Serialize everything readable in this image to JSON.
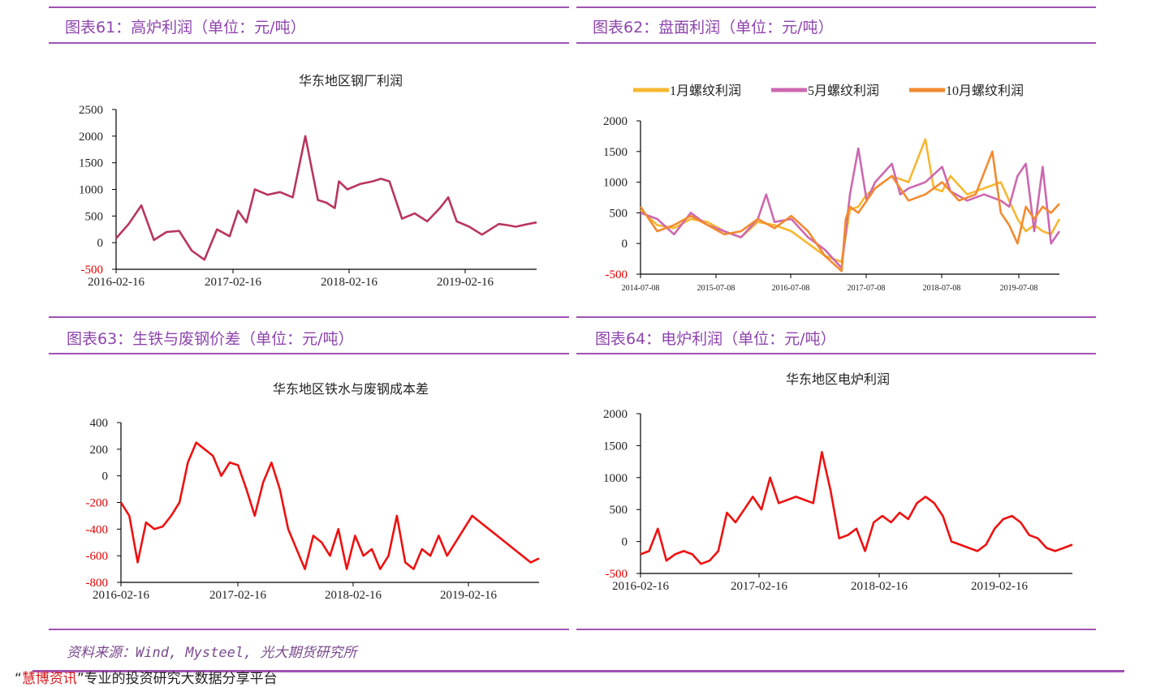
{
  "panels": {
    "p61": {
      "title": "图表61：高炉利润（单位：元/吨）"
    },
    "p62": {
      "title": "图表62：盘面利润（单位：元/吨）"
    },
    "p63": {
      "title": "图表63：生铁与废钢价差（单位：元/吨）"
    },
    "p64": {
      "title": "图表64：电炉利润（单位：元/吨）"
    }
  },
  "source": "资料来源：Wind, Mysteel, 光大期货研究所",
  "footer": {
    "quote_open": "“",
    "highlight": "慧博资讯",
    "rest": "”专业的投资研究大数据分享平台"
  },
  "colors": {
    "title": "#8e44ad",
    "rule": "#a052b4",
    "neg_tick": "#e00000"
  },
  "chart_data": [
    {
      "id": "c61",
      "type": "line",
      "title": "华东地区钢厂利润",
      "x_ticks": [
        "2016-02-16",
        "2017-02-16",
        "2018-02-16",
        "2019-02-16"
      ],
      "y_ticks": [
        "2500",
        "2000",
        "1500",
        "1000",
        "500",
        "0",
        "-500"
      ],
      "ylim": [
        -500,
        2500
      ],
      "series": [
        {
          "name": "华东地区钢厂利润",
          "color": "#b8365d",
          "t": [
            0,
            0.03,
            0.06,
            0.09,
            0.12,
            0.15,
            0.18,
            0.21,
            0.24,
            0.27,
            0.29,
            0.31,
            0.33,
            0.36,
            0.39,
            0.42,
            0.45,
            0.48,
            0.5,
            0.52,
            0.53,
            0.55,
            0.58,
            0.61,
            0.63,
            0.65,
            0.68,
            0.71,
            0.74,
            0.77,
            0.79,
            0.81,
            0.84,
            0.87,
            0.89,
            0.91,
            0.93,
            0.95,
            0.98,
            1.0
          ],
          "values": [
            80,
            350,
            700,
            50,
            200,
            220,
            -150,
            -320,
            250,
            120,
            600,
            380,
            1000,
            900,
            950,
            850,
            2000,
            800,
            750,
            650,
            1150,
            1000,
            1100,
            1150,
            1200,
            1150,
            450,
            550,
            400,
            650,
            850,
            400,
            300,
            150,
            250,
            350,
            330,
            300,
            350,
            380
          ]
        }
      ]
    },
    {
      "id": "c62",
      "type": "line",
      "title": "",
      "x_ticks": [
        "2014-07-08",
        "2015-07-08",
        "2016-07-08",
        "2017-07-08",
        "2018-07-08",
        "2019-07-08"
      ],
      "y_ticks": [
        "2000",
        "1500",
        "1000",
        "500",
        "0",
        "-500"
      ],
      "ylim": [
        -500,
        2000
      ],
      "legend": [
        "1月螺纹利润",
        "5月螺纹利润",
        "10月螺纹利润"
      ],
      "series": [
        {
          "name": "1月螺纹利润",
          "color": "#f5b731",
          "t": [
            0,
            0.04,
            0.08,
            0.12,
            0.16,
            0.2,
            0.24,
            0.28,
            0.32,
            0.36,
            0.4,
            0.44,
            0.48,
            0.5,
            0.52,
            0.54,
            0.56,
            0.6,
            0.64,
            0.68,
            0.7,
            0.72,
            0.74,
            0.78,
            0.82,
            0.86,
            0.88,
            0.9,
            0.92,
            0.94,
            0.96,
            0.98,
            1.0
          ],
          "values": [
            550,
            300,
            250,
            400,
            350,
            200,
            100,
            350,
            300,
            200,
            0,
            -200,
            -300,
            550,
            600,
            800,
            900,
            1100,
            1000,
            1700,
            900,
            850,
            1100,
            800,
            900,
            1000,
            700,
            400,
            200,
            300,
            200,
            150,
            400
          ]
        },
        {
          "name": "5月螺纹利润",
          "color": "#cc68b0",
          "t": [
            0,
            0.04,
            0.08,
            0.12,
            0.16,
            0.2,
            0.24,
            0.28,
            0.3,
            0.32,
            0.36,
            0.4,
            0.44,
            0.48,
            0.5,
            0.52,
            0.54,
            0.56,
            0.6,
            0.62,
            0.64,
            0.68,
            0.72,
            0.74,
            0.78,
            0.82,
            0.86,
            0.88,
            0.9,
            0.92,
            0.94,
            0.96,
            0.98,
            1.0
          ],
          "values": [
            500,
            400,
            150,
            500,
            300,
            200,
            100,
            400,
            800,
            350,
            400,
            100,
            -100,
            -400,
            800,
            1550,
            700,
            1000,
            1300,
            800,
            900,
            1000,
            1250,
            850,
            700,
            800,
            700,
            600,
            1100,
            1300,
            200,
            1250,
            0,
            200
          ]
        },
        {
          "name": "10月螺纹利润",
          "color": "#f28a30",
          "t": [
            0,
            0.04,
            0.08,
            0.12,
            0.16,
            0.2,
            0.24,
            0.28,
            0.32,
            0.36,
            0.4,
            0.44,
            0.48,
            0.49,
            0.5,
            0.52,
            0.56,
            0.6,
            0.64,
            0.68,
            0.72,
            0.76,
            0.8,
            0.84,
            0.86,
            0.88,
            0.9,
            0.92,
            0.94,
            0.96,
            0.98,
            1.0
          ],
          "values": [
            600,
            200,
            300,
            450,
            300,
            150,
            200,
            400,
            250,
            450,
            200,
            -200,
            -450,
            400,
            600,
            500,
            900,
            1100,
            700,
            800,
            1000,
            700,
            800,
            1500,
            500,
            300,
            0,
            600,
            400,
            600,
            500,
            650
          ]
        }
      ]
    },
    {
      "id": "c63",
      "type": "line",
      "title": "华东地区铁水与废钢成本差",
      "x_ticks": [
        "2016-02-16",
        "2017-02-16",
        "2018-02-16",
        "2019-02-16"
      ],
      "y_ticks": [
        "400",
        "200",
        "0",
        "-200",
        "-400",
        "-600",
        "-800"
      ],
      "ylim": [
        -800,
        400
      ],
      "series": [
        {
          "name": "华东地区铁水与废钢成本差",
          "color": "#ee1111",
          "t": [
            0,
            0.02,
            0.04,
            0.06,
            0.08,
            0.1,
            0.12,
            0.14,
            0.16,
            0.18,
            0.2,
            0.22,
            0.24,
            0.26,
            0.28,
            0.3,
            0.32,
            0.34,
            0.36,
            0.38,
            0.4,
            0.42,
            0.44,
            0.46,
            0.48,
            0.5,
            0.52,
            0.54,
            0.56,
            0.58,
            0.6,
            0.62,
            0.64,
            0.66,
            0.68,
            0.7,
            0.72,
            0.74,
            0.76,
            0.78,
            0.8,
            0.82,
            0.84,
            0.86,
            0.88,
            0.9,
            0.92,
            0.94,
            0.96,
            0.98,
            1.0
          ],
          "values": [
            -200,
            -300,
            -650,
            -350,
            -400,
            -380,
            -300,
            -200,
            100,
            250,
            200,
            150,
            0,
            100,
            80,
            -100,
            -300,
            -50,
            100,
            -100,
            -400,
            -550,
            -700,
            -450,
            -500,
            -600,
            -400,
            -700,
            -450,
            -600,
            -550,
            -700,
            -600,
            -300,
            -650,
            -700,
            -550,
            -600,
            -450,
            -600,
            -500,
            -400,
            -300,
            -350,
            -400,
            -450,
            -500,
            -550,
            -600,
            -650,
            -620
          ]
        }
      ]
    },
    {
      "id": "c64",
      "type": "line",
      "title": "华东地区电炉利润",
      "x_ticks": [
        "2016-02-16",
        "2017-02-16",
        "2018-02-16",
        "2019-02-16"
      ],
      "y_ticks": [
        "2000",
        "1500",
        "1000",
        "500",
        "0",
        "-500"
      ],
      "ylim": [
        -500,
        2000
      ],
      "series": [
        {
          "name": "华东地区电炉利润",
          "color": "#ee1111",
          "t": [
            0,
            0.02,
            0.04,
            0.06,
            0.08,
            0.1,
            0.12,
            0.14,
            0.16,
            0.18,
            0.2,
            0.22,
            0.24,
            0.26,
            0.28,
            0.3,
            0.32,
            0.34,
            0.36,
            0.38,
            0.4,
            0.42,
            0.44,
            0.46,
            0.48,
            0.5,
            0.52,
            0.54,
            0.56,
            0.58,
            0.6,
            0.62,
            0.64,
            0.66,
            0.68,
            0.7,
            0.72,
            0.74,
            0.76,
            0.78,
            0.8,
            0.82,
            0.84,
            0.86,
            0.88,
            0.9,
            0.92,
            0.94,
            0.96,
            0.98,
            1.0
          ],
          "values": [
            -200,
            -150,
            200,
            -300,
            -200,
            -150,
            -200,
            -350,
            -300,
            -150,
            450,
            300,
            500,
            700,
            500,
            1000,
            600,
            650,
            700,
            650,
            600,
            1400,
            800,
            50,
            100,
            200,
            -150,
            300,
            400,
            300,
            450,
            350,
            600,
            700,
            600,
            400,
            0,
            -50,
            -100,
            -150,
            -50,
            200,
            350,
            400,
            300,
            100,
            50,
            -100,
            -150,
            -100,
            -50
          ]
        }
      ]
    }
  ]
}
